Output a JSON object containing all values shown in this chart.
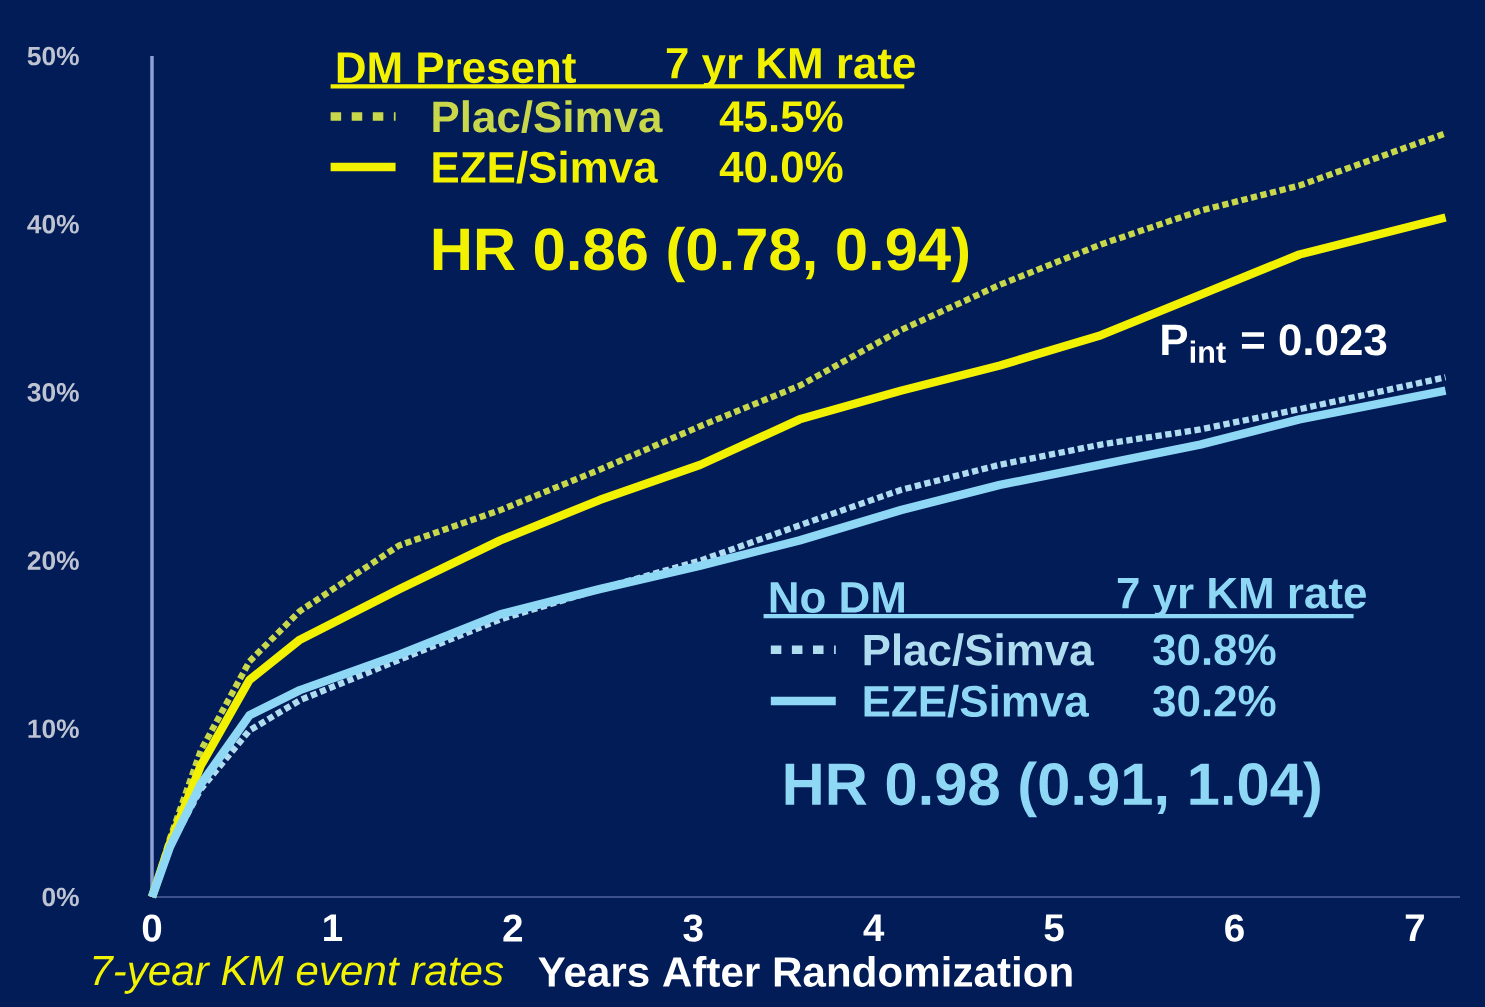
{
  "chart_data": {
    "type": "line",
    "xlabel": "Years After Randomization",
    "xlim": [
      0,
      7.25
    ],
    "ylim": [
      0,
      50
    ],
    "xticks": [
      0,
      1,
      2,
      3,
      4,
      5,
      6,
      7
    ],
    "yticks": [
      {
        "value": 0,
        "label": "0%"
      },
      {
        "value": 10,
        "label": "10%"
      },
      {
        "value": 20,
        "label": "20%"
      },
      {
        "value": 30,
        "label": "30%"
      },
      {
        "value": 40,
        "label": "40%"
      },
      {
        "value": 50,
        "label": "50%"
      }
    ],
    "legend": "top left",
    "marker": "none",
    "series": [
      {
        "name": "Plac/Simva",
        "color": "#c8d84a",
        "line_style": "dotted",
        "x": [
          0,
          0.1,
          0.27,
          0.54,
          0.82,
          1.37,
          1.93,
          2.48,
          3.04,
          3.59,
          4.15,
          4.7,
          5.26,
          5.81,
          6.36,
          7.17
        ],
        "values": [
          0,
          3.5,
          8.7,
          14,
          17,
          20.9,
          23,
          25.4,
          28,
          30.4,
          33.7,
          36.4,
          38.8,
          40.8,
          42.3,
          45.4
        ]
      },
      {
        "name": "EZE/Simva",
        "color": "#f2f200",
        "line_style": "solid",
        "x": [
          0,
          0.1,
          0.27,
          0.54,
          0.82,
          1.37,
          1.93,
          2.48,
          3.04,
          3.59,
          4.15,
          4.7,
          5.26,
          5.81,
          6.36,
          7.17
        ],
        "values": [
          0,
          3.2,
          7.8,
          12.9,
          15.3,
          18.3,
          21.2,
          23.6,
          25.7,
          28.4,
          30.1,
          31.6,
          33.4,
          35.8,
          38.2,
          40.4
        ]
      },
      {
        "name": "Plac/Simva",
        "color": "#b0dcf0",
        "line_style": "dotted",
        "x": [
          0,
          0.1,
          0.27,
          0.54,
          0.82,
          1.37,
          1.93,
          2.48,
          3.04,
          3.59,
          4.15,
          4.7,
          5.26,
          5.81,
          6.36,
          7.17
        ],
        "values": [
          0,
          3,
          6.4,
          9.9,
          11.7,
          14.1,
          16.5,
          18.3,
          20,
          22.1,
          24.2,
          25.7,
          26.9,
          27.8,
          29,
          30.9
        ]
      },
      {
        "name": "EZE/Simva",
        "color": "#8fd8f5",
        "line_style": "solid",
        "x": [
          0,
          0.1,
          0.27,
          0.54,
          0.82,
          1.37,
          1.93,
          2.48,
          3.04,
          3.59,
          4.15,
          4.7,
          5.26,
          5.81,
          6.36,
          7.17
        ],
        "values": [
          0,
          3,
          6.7,
          10.8,
          12.3,
          14.4,
          16.8,
          18.3,
          19.7,
          21.2,
          23,
          24.5,
          25.7,
          26.9,
          28.4,
          30.1
        ]
      }
    ],
    "annotations": [
      "DM Present",
      "7 yr KM rate",
      "45.5%",
      "40.0%",
      "HR 0.86 (0.78, 0.94)",
      "P$_{int}$ = 0.023",
      "No DM",
      "7 yr KM rate",
      "30.8%",
      "30.2%",
      "HR 0.98 (0.91, 1.04)",
      "7-year KM event rates"
    ]
  }
}
